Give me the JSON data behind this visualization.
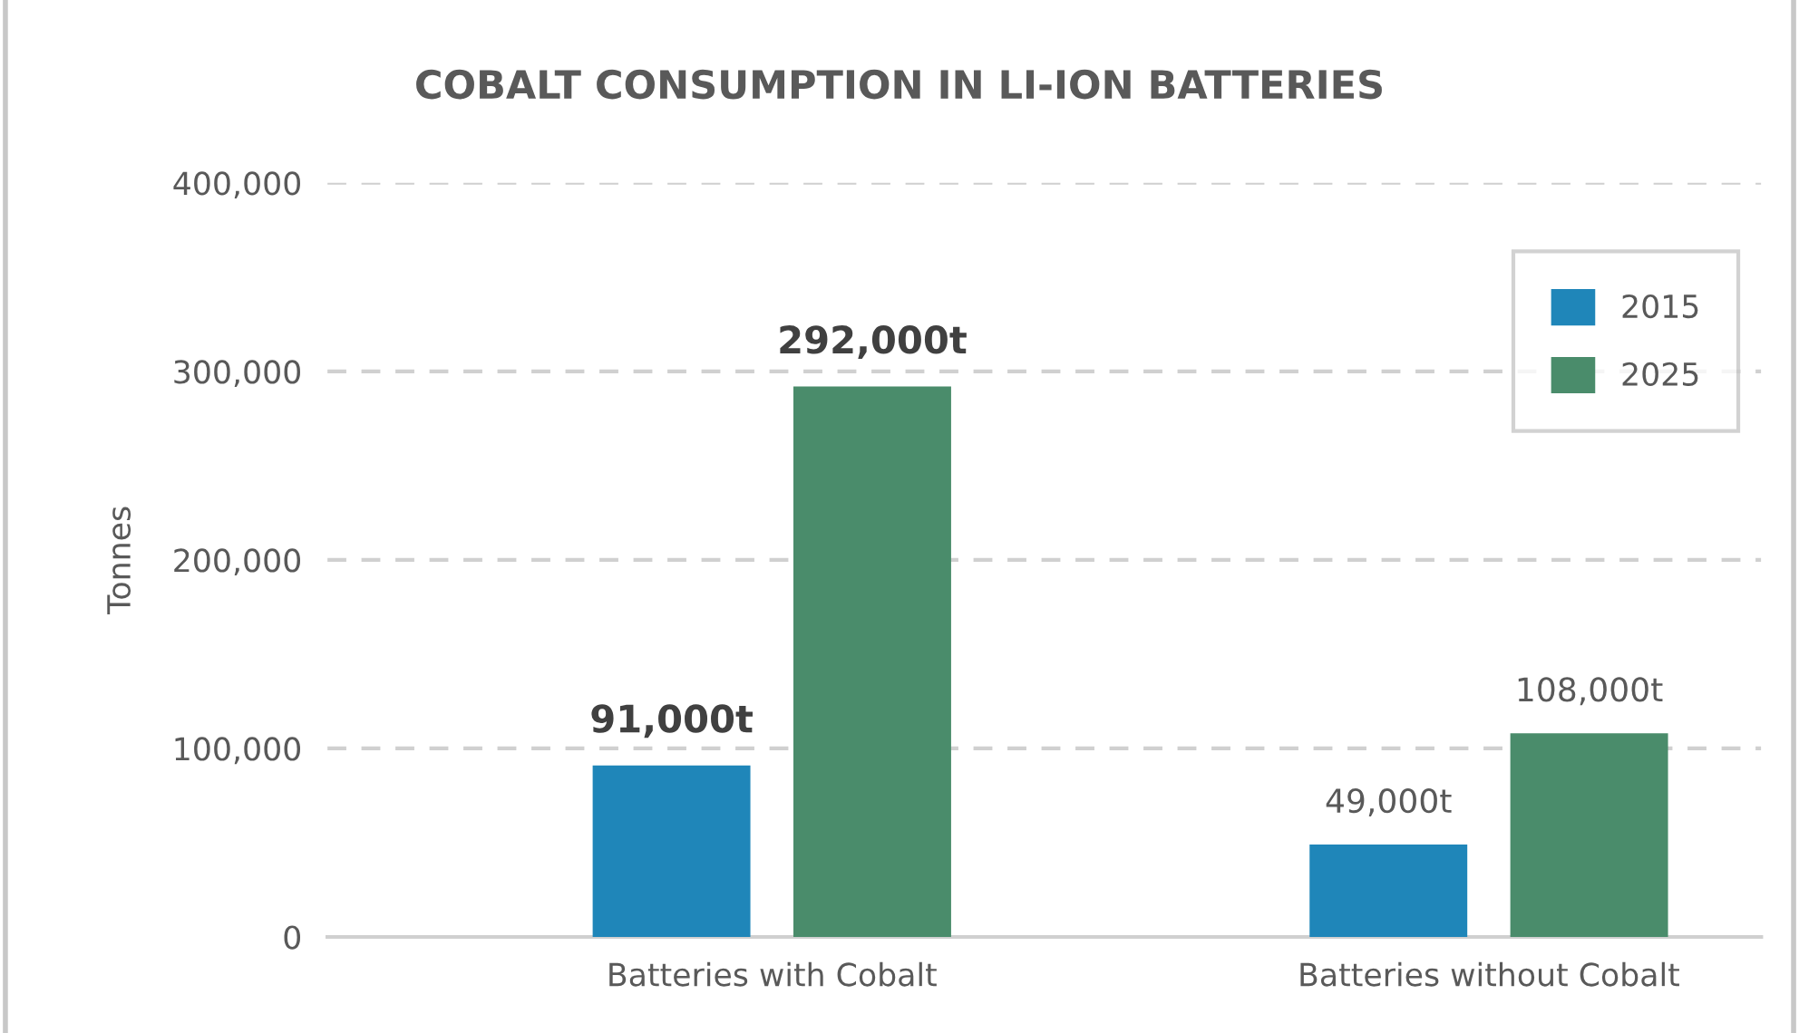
{
  "chart_data": {
    "type": "bar",
    "title": "COBALT CONSUMPTION IN LI-ION BATTERIES",
    "ylabel": "Tonnes",
    "categories": [
      "Batteries with Cobalt",
      "Batteries without Cobalt"
    ],
    "series": [
      {
        "name": "2015",
        "color": "#1f86b9",
        "values": [
          91000,
          49000
        ],
        "value_labels": [
          "91,000t",
          "49,000t"
        ]
      },
      {
        "name": "2025",
        "color": "#4a8c6b",
        "values": [
          292000,
          108000
        ],
        "value_labels": [
          "292,000t",
          "108,000t"
        ]
      }
    ],
    "ylim": [
      0,
      400000
    ],
    "yticks": [
      {
        "value": 0,
        "label": "0"
      },
      {
        "value": 100000,
        "label": "100,000"
      },
      {
        "value": 200000,
        "label": "200,000"
      },
      {
        "value": 300000,
        "label": "300,000"
      },
      {
        "value": 400000,
        "label": "400,000"
      }
    ],
    "grid": "y",
    "legend": "top right"
  }
}
